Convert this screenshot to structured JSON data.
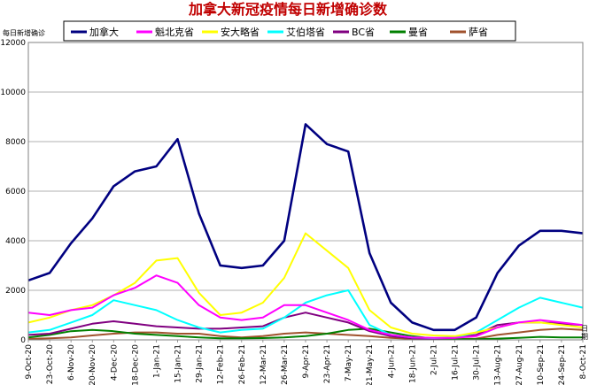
{
  "chart_data": {
    "type": "line",
    "title": "加拿大新冠疫情每日新增确诊数",
    "ylabel": "每日新增确诊",
    "xlabel": "日期",
    "ylim": [
      0,
      12000
    ],
    "yticks": [
      "0",
      "2000",
      "4000",
      "6000",
      "8000",
      "10000",
      "12000"
    ],
    "grid": true,
    "legend_position": "top",
    "categories": [
      "9-Oct-20",
      "23-Oct-20",
      "6-Nov-20",
      "20-Nov-20",
      "4-Dec-20",
      "18-Dec-20",
      "1-Jan-21",
      "15-Jan-21",
      "29-Jan-21",
      "12-Feb-21",
      "26-Feb-21",
      "12-Mar-21",
      "26-Mar-21",
      "9-Apr-21",
      "23-Apr-21",
      "7-May-21",
      "21-May-21",
      "4-Jun-21",
      "18-Jun-21",
      "2-Jul-21",
      "16-Jul-21",
      "30-Jul-21",
      "13-Aug-21",
      "27-Aug-21",
      "10-Sep-21",
      "24-Sep-21",
      "8-Oct-21"
    ],
    "series": [
      {
        "name": "加拿大",
        "color": "#000080",
        "values": [
          2400,
          2700,
          3900,
          4900,
          6200,
          6800,
          7000,
          8100,
          5100,
          3000,
          2900,
          3000,
          4000,
          8700,
          7900,
          7600,
          3500,
          1500,
          700,
          400,
          400,
          900,
          2700,
          3800,
          4400,
          4400,
          4300
        ]
      },
      {
        "name": "魁北克省",
        "color": "#ff00ff",
        "values": [
          1100,
          1000,
          1200,
          1300,
          1800,
          2100,
          2600,
          2300,
          1400,
          900,
          800,
          900,
          1400,
          1400,
          1100,
          800,
          400,
          200,
          100,
          80,
          80,
          150,
          500,
          700,
          800,
          700,
          600
        ]
      },
      {
        "name": "安大略省",
        "color": "#ffff00",
        "values": [
          700,
          900,
          1200,
          1400,
          1800,
          2300,
          3200,
          3300,
          1900,
          1000,
          1100,
          1500,
          2500,
          4300,
          3600,
          2900,
          1200,
          500,
          250,
          180,
          150,
          300,
          500,
          700,
          700,
          600,
          500
        ]
      },
      {
        "name": "艾伯塔省",
        "color": "#00ffff",
        "values": [
          300,
          400,
          700,
          1000,
          1600,
          1400,
          1200,
          800,
          500,
          300,
          400,
          450,
          900,
          1500,
          1800,
          2000,
          600,
          200,
          100,
          70,
          100,
          300,
          800,
          1300,
          1700,
          1500,
          1300
        ]
      },
      {
        "name": "BC省",
        "color": "#800080",
        "values": [
          200,
          250,
          450,
          650,
          750,
          650,
          550,
          500,
          450,
          450,
          500,
          550,
          900,
          1100,
          900,
          700,
          350,
          150,
          60,
          50,
          80,
          200,
          600,
          700,
          700,
          650,
          600
        ]
      },
      {
        "name": "曼省",
        "color": "#008000",
        "values": [
          100,
          200,
          350,
          400,
          350,
          250,
          200,
          150,
          100,
          60,
          60,
          70,
          100,
          150,
          250,
          400,
          450,
          300,
          150,
          50,
          30,
          30,
          50,
          80,
          120,
          100,
          100
        ]
      },
      {
        "name": "萨省",
        "color": "#a0522d",
        "values": [
          40,
          60,
          100,
          180,
          250,
          300,
          300,
          250,
          250,
          150,
          100,
          150,
          250,
          300,
          250,
          200,
          150,
          80,
          40,
          30,
          30,
          50,
          200,
          300,
          400,
          450,
          400
        ]
      }
    ]
  }
}
